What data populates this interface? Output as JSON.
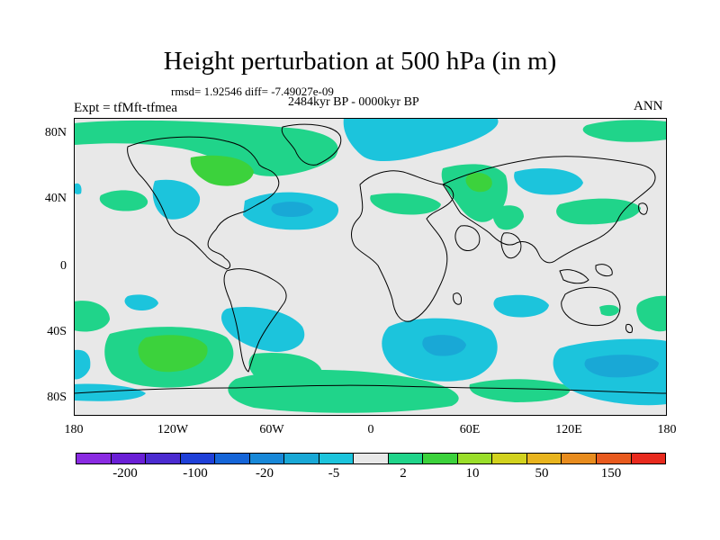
{
  "header": {
    "title": "Height perturbation at 500 hPa (in m)",
    "stats": "rmsd= 1.92546 diff= -7.49027e-09",
    "period": "2484kyr BP - 0000kyr BP",
    "experiment": "Expt = tfMft-tfmea",
    "season": "ANN"
  },
  "map": {
    "lat_labels": [
      "80N",
      "40N",
      "0",
      "40S",
      "80S"
    ],
    "lon_labels": [
      "180",
      "120W",
      "60W",
      "0",
      "60E",
      "120E",
      "180"
    ],
    "background_color": "#e8e8e8",
    "coastline_color": "#000000"
  },
  "colorbar": {
    "colors": [
      "#8a2be2",
      "#6a1fd6",
      "#4b2bd0",
      "#1f40d8",
      "#1565d8",
      "#1888d8",
      "#19a8d6",
      "#1cc4dc",
      "#e8e8e8",
      "#20d48a",
      "#3cd23c",
      "#9ade2a",
      "#d2d21e",
      "#e8b41e",
      "#e88c1e",
      "#e85a1e",
      "#e82a1e"
    ],
    "labels": [
      "-200",
      "-100",
      "-20",
      "-5",
      "2",
      "10",
      "50",
      "150"
    ]
  }
}
